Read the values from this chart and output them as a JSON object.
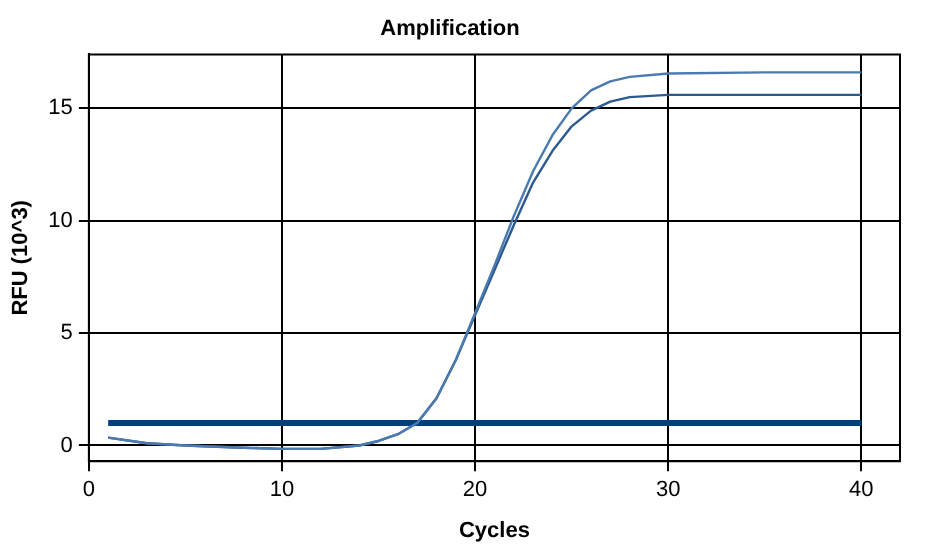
{
  "chart_data": {
    "type": "line",
    "title": "Amplification",
    "xlabel": "Cycles",
    "ylabel": "RFU (10^3)",
    "xlim": [
      0,
      42
    ],
    "xticks": [
      0,
      10,
      20,
      30,
      40
    ],
    "ylim": [
      -0.7,
      17.4
    ],
    "yticks": [
      0,
      5,
      10,
      15
    ],
    "grid": true,
    "legend": false,
    "marker": "none",
    "line_style": "solid",
    "series": [
      {
        "color": "#4a7ab0",
        "x": [
          1,
          3,
          5,
          8,
          10,
          12,
          14,
          15,
          16,
          17,
          18,
          19,
          20,
          21,
          22,
          23,
          24,
          25,
          26,
          27,
          28,
          30,
          35,
          40
        ],
        "values": [
          0.35,
          0.1,
          0,
          -0.1,
          -0.15,
          -0.15,
          0,
          0.2,
          0.5,
          1.0,
          2.1,
          3.8,
          5.9,
          8.0,
          10.2,
          12.2,
          13.8,
          15.0,
          15.8,
          16.2,
          16.4,
          16.55,
          16.6,
          16.6
        ]
      },
      {
        "color": "#2c5a90",
        "x": [
          1,
          3,
          5,
          8,
          10,
          12,
          14,
          15,
          16,
          17,
          18,
          19,
          20,
          21,
          22,
          23,
          24,
          25,
          26,
          27,
          28,
          30,
          35,
          40
        ],
        "values": [
          0.35,
          0.1,
          0,
          -0.1,
          -0.15,
          -0.15,
          0,
          0.2,
          0.5,
          1.0,
          2.1,
          3.8,
          5.8,
          7.8,
          9.8,
          11.7,
          13.1,
          14.2,
          14.9,
          15.3,
          15.5,
          15.6,
          15.6,
          15.6
        ]
      },
      {
        "color": "#003f7f",
        "x": [
          1,
          40
        ],
        "values": [
          1.0,
          1.0
        ]
      }
    ]
  }
}
